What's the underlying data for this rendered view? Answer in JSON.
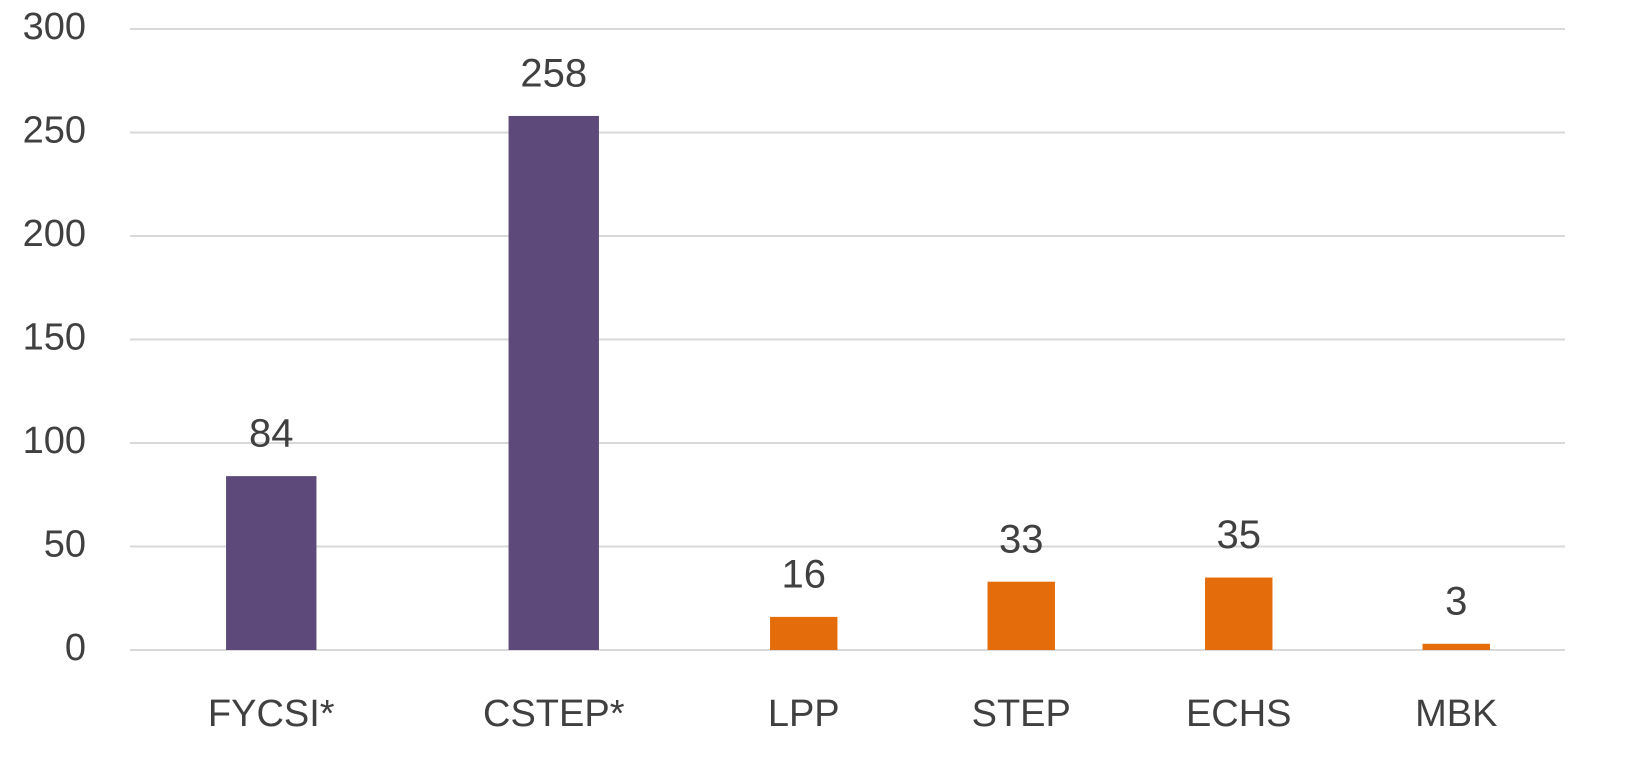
{
  "chart_data": {
    "type": "bar",
    "categories": [
      "FYCSI*",
      "CSTEP*",
      "LPP",
      "STEP",
      "ECHS",
      "MBK"
    ],
    "values": [
      84,
      258,
      16,
      33,
      35,
      3
    ],
    "colors": [
      "#5e4a7a",
      "#5e4a7a",
      "#e46c0a",
      "#e46c0a",
      "#e46c0a",
      "#e46c0a"
    ],
    "ylim": [
      0,
      300
    ],
    "yticks": [
      0,
      50,
      100,
      150,
      200,
      250,
      300
    ],
    "grid": true
  }
}
